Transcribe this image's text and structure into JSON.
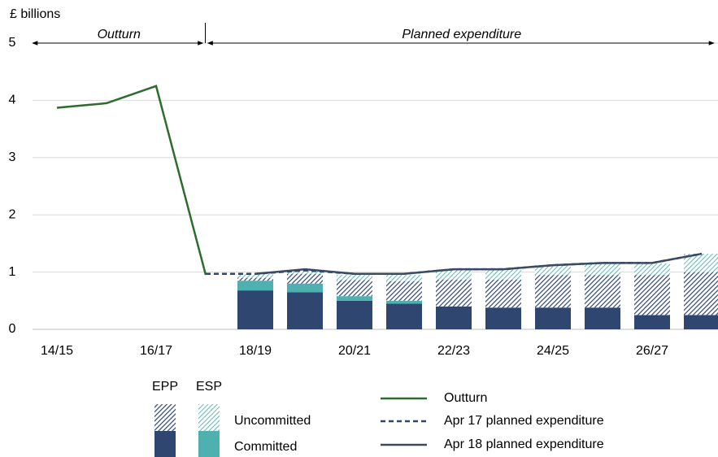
{
  "chart_data": {
    "type": "bar",
    "y_label": "£ billions",
    "annotations": [
      "Outturn",
      "Planned expenditure"
    ],
    "categories": [
      "14/15",
      null,
      "16/17",
      null,
      "18/19",
      null,
      "20/21",
      null,
      "22/23",
      null,
      "24/25",
      null,
      "26/27",
      null
    ],
    "ylim": [
      0,
      5
    ],
    "yticks": [
      0,
      1,
      2,
      3,
      4,
      5
    ],
    "grid": true,
    "bar_legend": {
      "columns": [
        "EPP",
        "ESP"
      ],
      "rows": [
        "Uncommitted",
        "Committed"
      ]
    },
    "bar_series": [
      {
        "color": "#2e4670",
        "hatch": false,
        "values": [
          null,
          null,
          null,
          null,
          0.68,
          0.65,
          0.5,
          0.45,
          0.4,
          0.38,
          0.38,
          0.38,
          0.25,
          0.25
        ]
      },
      {
        "color": "#4fb0b0",
        "hatch": false,
        "values": [
          null,
          null,
          null,
          null,
          0.17,
          0.15,
          0.08,
          0.05,
          0,
          0,
          0,
          0,
          0,
          0
        ]
      },
      {
        "color": "#2e4670",
        "hatch": true,
        "values": [
          null,
          null,
          null,
          null,
          0.05,
          0.17,
          0.28,
          0.34,
          0.47,
          0.49,
          0.57,
          0.57,
          0.7,
          0.75
        ]
      },
      {
        "color": "#4fb0b0",
        "hatch": true,
        "values": [
          null,
          null,
          null,
          null,
          0.07,
          0.05,
          0.09,
          0.11,
          0.18,
          0.18,
          0.17,
          0.2,
          0.2,
          0.32
        ]
      }
    ],
    "series": [
      {
        "name": "Outturn",
        "color": "#2e6b2e",
        "dash": false,
        "values": [
          3.87,
          3.95,
          4.25,
          0.95,
          null,
          null,
          null,
          null,
          null,
          null,
          null,
          null,
          null,
          null
        ]
      },
      {
        "name": "Apr 17 planned expenditure",
        "color": "#2e4670",
        "dash": true,
        "values": [
          null,
          null,
          null,
          0.97,
          0.97,
          1.03,
          0.97,
          0.97,
          1.05,
          1.05,
          1.12,
          1.16,
          1.16,
          1.32
        ]
      },
      {
        "name": "Apr 18 planned expenditure",
        "color": "#3b4a63",
        "dash": false,
        "values": [
          null,
          null,
          null,
          null,
          0.97,
          1.05,
          0.97,
          0.97,
          1.05,
          1.05,
          1.12,
          1.16,
          1.16,
          1.32
        ]
      }
    ]
  }
}
